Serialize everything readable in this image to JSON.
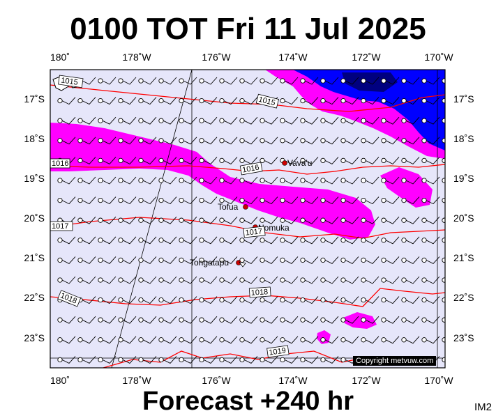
{
  "title": "0100 TOT Fri 11 Jul 2025",
  "footer": "Forecast +240 hr",
  "image_id": "IM2",
  "copyright": "Copyright metvuw.com",
  "lon_ticks": [
    "180˚",
    "178˚W",
    "176˚W",
    "174˚W",
    "172˚W",
    "170˚W"
  ],
  "lat_ticks": [
    "17˚S",
    "18˚S",
    "19˚S",
    "20˚S",
    "21˚S",
    "22˚S",
    "23˚S"
  ],
  "places": [
    "Vava'u",
    "Tofua",
    "Nomuka",
    "Tongatapu"
  ],
  "isobar_labels": [
    "1015",
    "1015",
    "1016",
    "1016",
    "1017",
    "1017",
    "1018",
    "1018",
    "1019"
  ],
  "colors": {
    "background": "#e6e6fa",
    "isobar": "#ff0000",
    "rain_light": "#ff00ff",
    "rain_heavy": "#0000ff",
    "island": "#cc0000"
  }
}
